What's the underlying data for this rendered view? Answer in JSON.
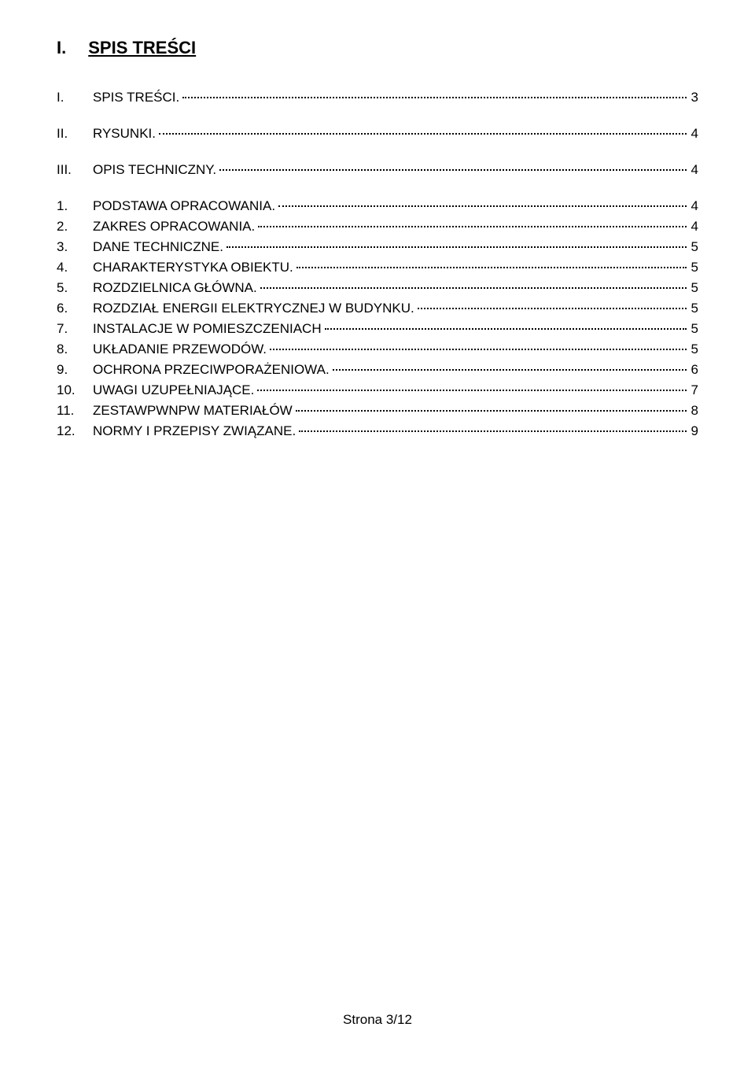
{
  "heading": {
    "num": "I.",
    "title": "SPIS TREŚCI"
  },
  "toc": [
    {
      "num": "I.",
      "label": "SPIS TREŚCI.",
      "page": "3",
      "gapAfter": true
    },
    {
      "num": "II.",
      "label": "RYSUNKI.",
      "page": "4",
      "gapAfter": true
    },
    {
      "num": "III.",
      "label": "OPIS TECHNICZNY.",
      "page": "4",
      "gapAfter": true
    },
    {
      "num": "1.",
      "label": "PODSTAWA OPRACOWANIA.",
      "page": "4",
      "gapAfter": false
    },
    {
      "num": "2.",
      "label": "ZAKRES OPRACOWANIA.",
      "page": "4",
      "gapAfter": false
    },
    {
      "num": "3.",
      "label": "DANE TECHNICZNE.",
      "page": "5",
      "gapAfter": false
    },
    {
      "num": "4.",
      "label": "CHARAKTERYSTYKA OBIEKTU.",
      "page": "5",
      "gapAfter": false
    },
    {
      "num": "5.",
      "label": "ROZDZIELNICA GŁÓWNA.",
      "page": "5",
      "gapAfter": false
    },
    {
      "num": "6.",
      "label": "ROZDZIAŁ ENERGII ELEKTRYCZNEJ W BUDYNKU.",
      "page": "5",
      "gapAfter": false
    },
    {
      "num": "7.",
      "label": "INSTALACJE W POMIESZCZENIACH",
      "page": "5",
      "gapAfter": false
    },
    {
      "num": "8.",
      "label": "UKŁADANIE PRZEWODÓW.",
      "page": "5",
      "gapAfter": false
    },
    {
      "num": "9.",
      "label": "OCHRONA PRZECIWPORAŻENIOWA.",
      "page": "6",
      "gapAfter": false
    },
    {
      "num": "10.",
      "label": "UWAGI UZUPEŁNIAJĄCE.",
      "page": "7",
      "gapAfter": false
    },
    {
      "num": "11.",
      "label": "ZESTAWPWNPW MATERIAŁÓW",
      "page": "8",
      "gapAfter": false
    },
    {
      "num": "12.",
      "label": "NORMY I PRZEPISY ZWIĄZANE.",
      "page": "9",
      "gapAfter": false
    }
  ],
  "footer": "Strona 3/12"
}
